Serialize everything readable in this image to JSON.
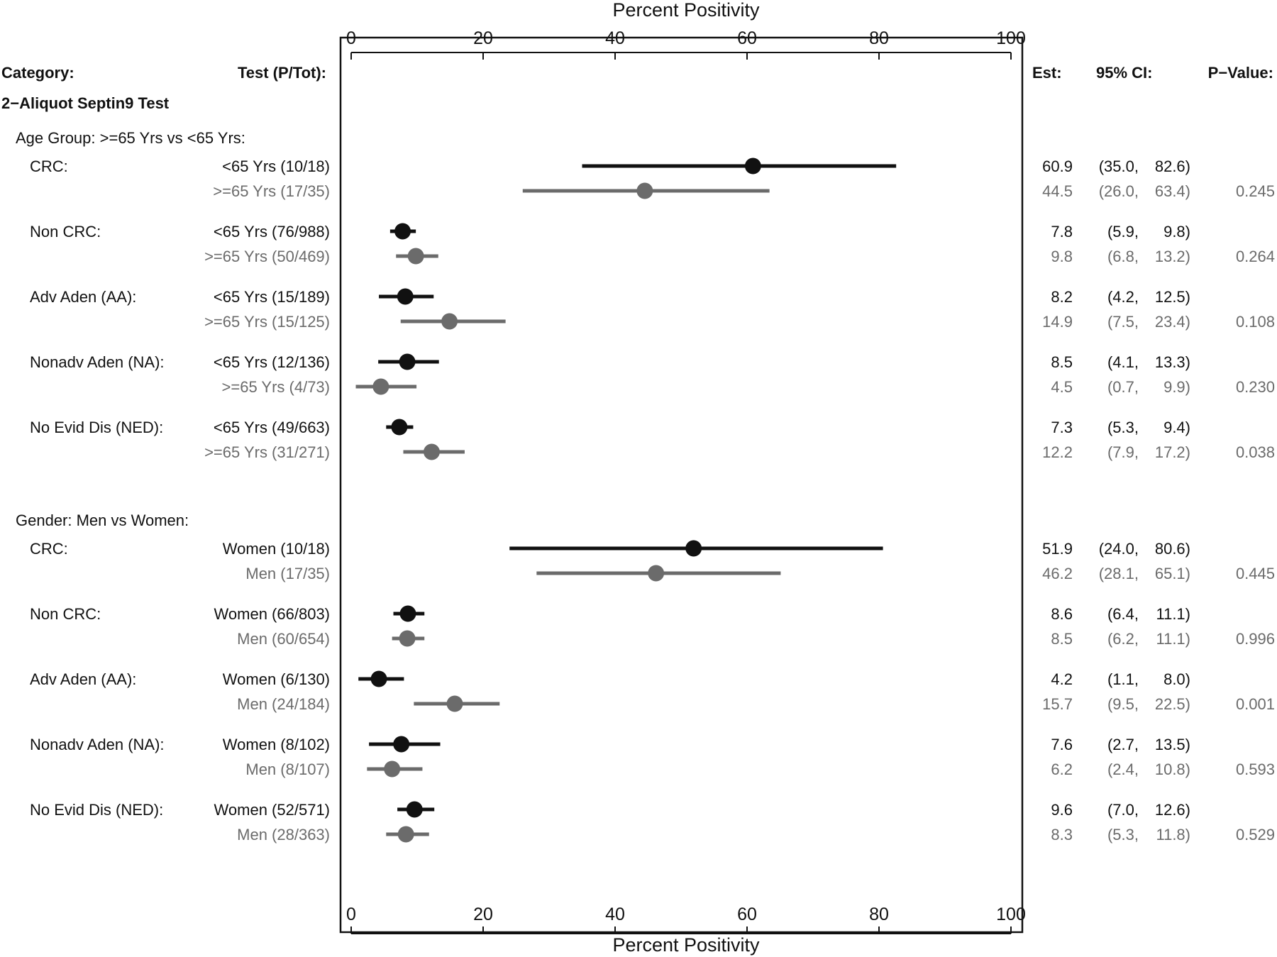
{
  "chart_data": {
    "type": "forest",
    "title": "",
    "xlabel": "Percent Positivity",
    "xlim": [
      0,
      100
    ],
    "xticks": [
      0,
      20,
      40,
      60,
      80,
      100
    ],
    "headers": {
      "category": "Category:",
      "test": "Test (P/Tot):",
      "est": "Est:",
      "ci": "95% CI:",
      "pvalue": "P−Value:"
    },
    "section_title": "2−Aliquot Septin9 Test",
    "colors": {
      "primary": "#111111",
      "secondary": "#6b6b6b"
    },
    "groups": [
      {
        "title": "Age Group: >=65 Yrs vs <65 Yrs:",
        "categories": [
          {
            "label": "CRC:",
            "rows": [
              {
                "test": "<65 Yrs (10/18)",
                "est": 60.9,
                "lo": 35.0,
                "hi": 82.6,
                "est_text": "60.9",
                "lo_text": "(35.0,",
                "hi_text": "82.6)",
                "p": ""
              },
              {
                "test": ">=65 Yrs (17/35)",
                "est": 44.5,
                "lo": 26.0,
                "hi": 63.4,
                "est_text": "44.5",
                "lo_text": "(26.0,",
                "hi_text": "63.4)",
                "p": "0.245"
              }
            ]
          },
          {
            "label": "Non CRC:",
            "rows": [
              {
                "test": "<65 Yrs (76/988)",
                "est": 7.8,
                "lo": 5.9,
                "hi": 9.8,
                "est_text": "7.8",
                "lo_text": "(5.9,",
                "hi_text": "9.8)",
                "p": ""
              },
              {
                "test": ">=65 Yrs (50/469)",
                "est": 9.8,
                "lo": 6.8,
                "hi": 13.2,
                "est_text": "9.8",
                "lo_text": "(6.8,",
                "hi_text": "13.2)",
                "p": "0.264"
              }
            ]
          },
          {
            "label": "Adv Aden (AA):",
            "rows": [
              {
                "test": "<65 Yrs (15/189)",
                "est": 8.2,
                "lo": 4.2,
                "hi": 12.5,
                "est_text": "8.2",
                "lo_text": "(4.2,",
                "hi_text": "12.5)",
                "p": ""
              },
              {
                "test": ">=65 Yrs (15/125)",
                "est": 14.9,
                "lo": 7.5,
                "hi": 23.4,
                "est_text": "14.9",
                "lo_text": "(7.5,",
                "hi_text": "23.4)",
                "p": "0.108"
              }
            ]
          },
          {
            "label": "Nonadv Aden (NA):",
            "rows": [
              {
                "test": "<65 Yrs (12/136)",
                "est": 8.5,
                "lo": 4.1,
                "hi": 13.3,
                "est_text": "8.5",
                "lo_text": "(4.1,",
                "hi_text": "13.3)",
                "p": ""
              },
              {
                "test": ">=65 Yrs (4/73)",
                "est": 4.5,
                "lo": 0.7,
                "hi": 9.9,
                "est_text": "4.5",
                "lo_text": "(0.7,",
                "hi_text": "9.9)",
                "p": "0.230"
              }
            ]
          },
          {
            "label": "No Evid Dis (NED):",
            "rows": [
              {
                "test": "<65 Yrs (49/663)",
                "est": 7.3,
                "lo": 5.3,
                "hi": 9.4,
                "est_text": "7.3",
                "lo_text": "(5.3,",
                "hi_text": "9.4)",
                "p": ""
              },
              {
                "test": ">=65 Yrs (31/271)",
                "est": 12.2,
                "lo": 7.9,
                "hi": 17.2,
                "est_text": "12.2",
                "lo_text": "(7.9,",
                "hi_text": "17.2)",
                "p": "0.038"
              }
            ]
          }
        ]
      },
      {
        "title": "Gender: Men vs Women:",
        "categories": [
          {
            "label": "CRC:",
            "rows": [
              {
                "test": "Women (10/18)",
                "est": 51.9,
                "lo": 24.0,
                "hi": 80.6,
                "est_text": "51.9",
                "lo_text": "(24.0,",
                "hi_text": "80.6)",
                "p": ""
              },
              {
                "test": "Men (17/35)",
                "est": 46.2,
                "lo": 28.1,
                "hi": 65.1,
                "est_text": "46.2",
                "lo_text": "(28.1,",
                "hi_text": "65.1)",
                "p": "0.445"
              }
            ]
          },
          {
            "label": "Non CRC:",
            "rows": [
              {
                "test": "Women (66/803)",
                "est": 8.6,
                "lo": 6.4,
                "hi": 11.1,
                "est_text": "8.6",
                "lo_text": "(6.4,",
                "hi_text": "11.1)",
                "p": ""
              },
              {
                "test": "Men (60/654)",
                "est": 8.5,
                "lo": 6.2,
                "hi": 11.1,
                "est_text": "8.5",
                "lo_text": "(6.2,",
                "hi_text": "11.1)",
                "p": "0.996"
              }
            ]
          },
          {
            "label": "Adv Aden (AA):",
            "rows": [
              {
                "test": "Women (6/130)",
                "est": 4.2,
                "lo": 1.1,
                "hi": 8.0,
                "est_text": "4.2",
                "lo_text": "(1.1,",
                "hi_text": "8.0)",
                "p": ""
              },
              {
                "test": "Men (24/184)",
                "est": 15.7,
                "lo": 9.5,
                "hi": 22.5,
                "est_text": "15.7",
                "lo_text": "(9.5,",
                "hi_text": "22.5)",
                "p": "0.001"
              }
            ]
          },
          {
            "label": "Nonadv Aden (NA):",
            "rows": [
              {
                "test": "Women (8/102)",
                "est": 7.6,
                "lo": 2.7,
                "hi": 13.5,
                "est_text": "7.6",
                "lo_text": "(2.7,",
                "hi_text": "13.5)",
                "p": ""
              },
              {
                "test": "Men (8/107)",
                "est": 6.2,
                "lo": 2.4,
                "hi": 10.8,
                "est_text": "6.2",
                "lo_text": "(2.4,",
                "hi_text": "10.8)",
                "p": "0.593"
              }
            ]
          },
          {
            "label": "No Evid Dis (NED):",
            "rows": [
              {
                "test": "Women (52/571)",
                "est": 9.6,
                "lo": 7.0,
                "hi": 12.6,
                "est_text": "9.6",
                "lo_text": "(7.0,",
                "hi_text": "12.6)",
                "p": ""
              },
              {
                "test": "Men (28/363)",
                "est": 8.3,
                "lo": 5.3,
                "hi": 11.8,
                "est_text": "8.3",
                "lo_text": "(5.3,",
                "hi_text": "11.8)",
                "p": "0.529"
              }
            ]
          }
        ]
      }
    ]
  }
}
